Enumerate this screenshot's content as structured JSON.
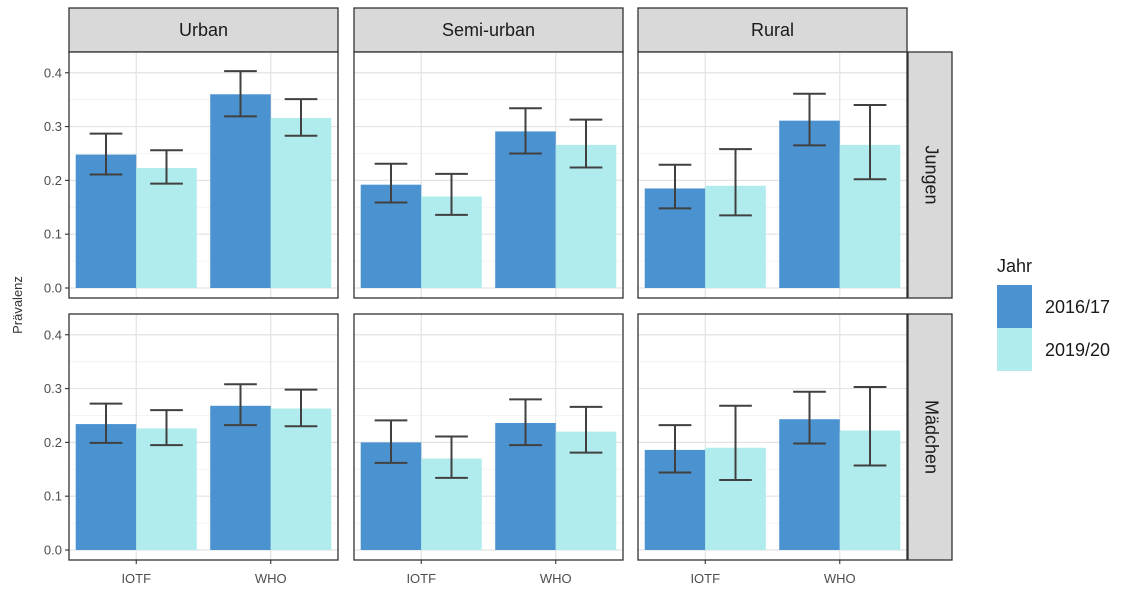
{
  "chart_data": {
    "type": "bar",
    "ylabel": "Prävalenz",
    "ylim": [
      0,
      0.42
    ],
    "yticks": [
      "0.0",
      "0.1",
      "0.2",
      "0.3",
      "0.4"
    ],
    "ytick_values": [
      0,
      0.1,
      0.2,
      0.3,
      0.4
    ],
    "categories": [
      "IOTF",
      "WHO"
    ],
    "columns": [
      "Urban",
      "Semi-urban",
      "Rural"
    ],
    "rows": [
      "Jungen",
      "Mädchen"
    ],
    "legend": {
      "title": "Jahr",
      "placement": "right",
      "entries": [
        {
          "name": "2016/17",
          "color": "#4B92D0"
        },
        {
          "name": "2019/20",
          "color": "#B0ECEE"
        }
      ]
    },
    "grid": true,
    "panels": [
      {
        "row": "Jungen",
        "col": "Urban",
        "series": [
          {
            "name": "2016/17",
            "values": [
              0.248,
              0.36
            ],
            "lower": [
              0.211,
              0.319
            ],
            "upper": [
              0.287,
              0.403
            ]
          },
          {
            "name": "2019/20",
            "values": [
              0.223,
              0.316
            ],
            "lower": [
              0.194,
              0.283
            ],
            "upper": [
              0.256,
              0.351
            ]
          }
        ]
      },
      {
        "row": "Jungen",
        "col": "Semi-urban",
        "series": [
          {
            "name": "2016/17",
            "values": [
              0.192,
              0.291
            ],
            "lower": [
              0.159,
              0.25
            ],
            "upper": [
              0.231,
              0.334
            ]
          },
          {
            "name": "2019/20",
            "values": [
              0.17,
              0.266
            ],
            "lower": [
              0.136,
              0.224
            ],
            "upper": [
              0.212,
              0.313
            ]
          }
        ]
      },
      {
        "row": "Jungen",
        "col": "Rural",
        "series": [
          {
            "name": "2016/17",
            "values": [
              0.185,
              0.311
            ],
            "lower": [
              0.148,
              0.265
            ],
            "upper": [
              0.229,
              0.361
            ]
          },
          {
            "name": "2019/20",
            "values": [
              0.19,
              0.266
            ],
            "lower": [
              0.135,
              0.202
            ],
            "upper": [
              0.258,
              0.34
            ]
          }
        ]
      },
      {
        "row": "Mädchen",
        "col": "Urban",
        "series": [
          {
            "name": "2016/17",
            "values": [
              0.234,
              0.268
            ],
            "lower": [
              0.199,
              0.232
            ],
            "upper": [
              0.272,
              0.308
            ]
          },
          {
            "name": "2019/20",
            "values": [
              0.226,
              0.263
            ],
            "lower": [
              0.195,
              0.23
            ],
            "upper": [
              0.26,
              0.298
            ]
          }
        ]
      },
      {
        "row": "Mädchen",
        "col": "Semi-urban",
        "series": [
          {
            "name": "2016/17",
            "values": [
              0.2,
              0.236
            ],
            "lower": [
              0.162,
              0.195
            ],
            "upper": [
              0.241,
              0.28
            ]
          },
          {
            "name": "2019/20",
            "values": [
              0.17,
              0.22
            ],
            "lower": [
              0.134,
              0.181
            ],
            "upper": [
              0.211,
              0.266
            ]
          }
        ]
      },
      {
        "row": "Mädchen",
        "col": "Rural",
        "series": [
          {
            "name": "2016/17",
            "values": [
              0.186,
              0.243
            ],
            "lower": [
              0.144,
              0.198
            ],
            "upper": [
              0.232,
              0.294
            ]
          },
          {
            "name": "2019/20",
            "values": [
              0.19,
              0.222
            ],
            "lower": [
              0.13,
              0.157
            ],
            "upper": [
              0.268,
              0.303
            ]
          }
        ]
      }
    ]
  }
}
